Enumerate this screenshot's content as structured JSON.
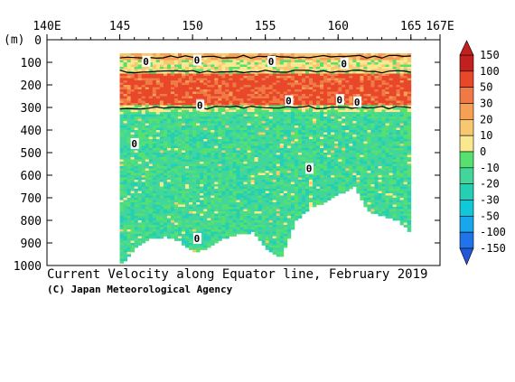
{
  "chart_data": {
    "type": "heatmap",
    "title": "Current Velocity along Equator line, February 2019",
    "credit": "(C) Japan Meteorological Agency",
    "ylabel": "(m)",
    "x_ticks": [
      "140E",
      "145",
      "150",
      "155",
      "160",
      "165",
      "167E"
    ],
    "x_tick_values": [
      140,
      145,
      150,
      155,
      160,
      165,
      167
    ],
    "xlim": [
      140,
      167
    ],
    "y_ticks": [
      "0",
      "100",
      "200",
      "300",
      "400",
      "500",
      "600",
      "700",
      "800",
      "900",
      "1000"
    ],
    "y_tick_values": [
      0,
      100,
      200,
      300,
      400,
      500,
      600,
      700,
      800,
      900,
      1000
    ],
    "ylim": [
      0,
      1000
    ],
    "colorbar": {
      "levels": [
        "150",
        "100",
        "50",
        "30",
        "20",
        "10",
        "0",
        "-10",
        "-20",
        "-30",
        "-50",
        "-100",
        "-150"
      ],
      "colors": [
        "#c2201e",
        "#e8472a",
        "#f07a45",
        "#f5a055",
        "#f8c870",
        "#fae890",
        "#55e070",
        "#42d69a",
        "#25cfb4",
        "#12c8d8",
        "#18a6ec",
        "#2073e8"
      ]
    },
    "contour_label": "0",
    "data_extent": {
      "lon_start": 145,
      "lon_end": 165
    },
    "bands": [
      {
        "from": 60,
        "to": 90,
        "value": 20
      },
      {
        "from": 90,
        "to": 150,
        "value": 5
      },
      {
        "from": 150,
        "to": 290,
        "value": 60
      },
      {
        "from": 290,
        "to": 320,
        "value": 0
      },
      {
        "from": 320,
        "to": 1000,
        "value": -10
      }
    ],
    "bottom_profile": {
      "lon": [
        145,
        146,
        147,
        148,
        149,
        150,
        151,
        152,
        153,
        154,
        155,
        156,
        157,
        158,
        159,
        160,
        161,
        162,
        163,
        164,
        165
      ],
      "depth": [
        990,
        920,
        880,
        870,
        890,
        940,
        920,
        880,
        860,
        850,
        930,
        960,
        800,
        740,
        720,
        680,
        650,
        760,
        780,
        800,
        860
      ]
    },
    "zero_labels": [
      {
        "lon": 146.8,
        "depth": 95
      },
      {
        "lon": 150.3,
        "depth": 90
      },
      {
        "lon": 155.4,
        "depth": 95
      },
      {
        "lon": 160.4,
        "depth": 105
      },
      {
        "lon": 150.5,
        "depth": 290
      },
      {
        "lon": 156.6,
        "depth": 270
      },
      {
        "lon": 160.1,
        "depth": 265
      },
      {
        "lon": 161.3,
        "depth": 275
      },
      {
        "lon": 146.0,
        "depth": 460
      },
      {
        "lon": 158.0,
        "depth": 570
      },
      {
        "lon": 150.3,
        "depth": 880
      }
    ]
  }
}
